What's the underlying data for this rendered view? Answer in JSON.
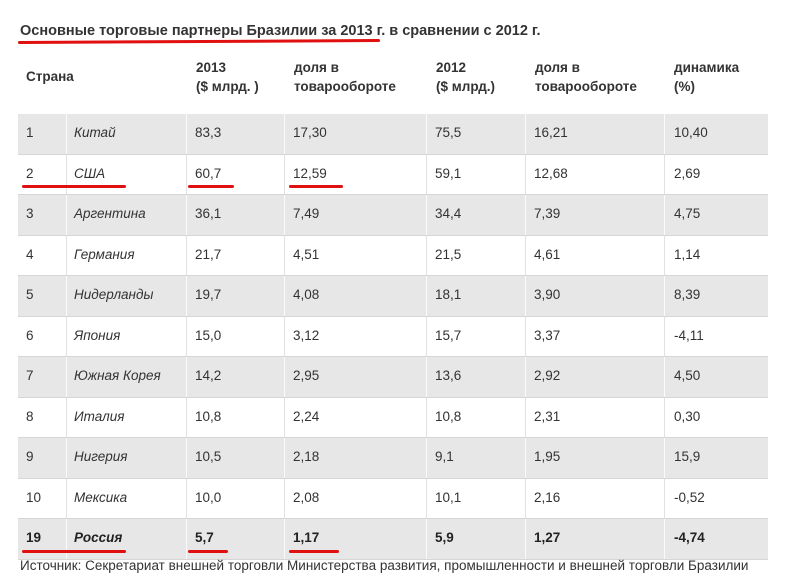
{
  "title": "Основные торговые партнеры Бразилии за 2013 г. в сравнении с 2012 г.",
  "headers": {
    "country": "Страна",
    "y2013_l1": "2013",
    "y2013_l2": "($ млрд. )",
    "share2013_l1": "доля в",
    "share2013_l2": "товарообороте",
    "y2012_l1": "2012",
    "y2012_l2": "($ млрд.)",
    "share2012_l1": "доля в",
    "share2012_l2": "товарообороте",
    "dyn_l1": "динамика",
    "dyn_l2": "(%)"
  },
  "source": "Источник: Секретариат внешней торговли Министерства развития, промышленности и внешней торговли Бразилии",
  "colors": {
    "highlight": "#e01010",
    "row_shade": "#e7e7e7"
  },
  "chart_data": {
    "type": "table",
    "title": "Основные торговые партнеры Бразилии за 2013 г. в сравнении с 2012 г.",
    "columns": [
      "Страна",
      "2013 ($ млрд. )",
      "доля в товарообороте",
      "2012 ($ млрд.)",
      "доля в товарообороте",
      "динамика (%)"
    ],
    "rows": [
      {
        "rank": "1",
        "country": "Китай",
        "v2013": "83,3",
        "s2013": "17,30",
        "v2012": "75,5",
        "s2012": "16,21",
        "dyn": "10,40"
      },
      {
        "rank": "2",
        "country": "США",
        "v2013": "60,7",
        "s2013": "12,59",
        "v2012": "59,1",
        "s2012": "12,68",
        "dyn": "2,69"
      },
      {
        "rank": "3",
        "country": "Аргентина",
        "v2013": "36,1",
        "s2013": "7,49",
        "v2012": "34,4",
        "s2012": "7,39",
        "dyn": "4,75"
      },
      {
        "rank": "4",
        "country": "Германия",
        "v2013": "21,7",
        "s2013": "4,51",
        "v2012": "21,5",
        "s2012": "4,61",
        "dyn": "1,14"
      },
      {
        "rank": "5",
        "country": "Нидерланды",
        "v2013": "19,7",
        "s2013": "4,08",
        "v2012": "18,1",
        "s2012": "3,90",
        "dyn": "8,39"
      },
      {
        "rank": "6",
        "country": "Япония",
        "v2013": "15,0",
        "s2013": "3,12",
        "v2012": "15,7",
        "s2012": "3,37",
        "dyn": "-4,11"
      },
      {
        "rank": "7",
        "country": "Южная Корея",
        "v2013": "14,2",
        "s2013": "2,95",
        "v2012": "13,6",
        "s2012": "2,92",
        "dyn": "4,50"
      },
      {
        "rank": "8",
        "country": "Италия",
        "v2013": "10,8",
        "s2013": "2,24",
        "v2012": "10,8",
        "s2012": "2,31",
        "dyn": "0,30"
      },
      {
        "rank": "9",
        "country": "Нигерия",
        "v2013": "10,5",
        "s2013": "2,18",
        "v2012": "9,1",
        "s2012": "1,95",
        "dyn": "15,9"
      },
      {
        "rank": "10",
        "country": "Мексика",
        "v2013": "10,0",
        "s2013": "2,08",
        "v2012": "10,1",
        "s2012": "2,16",
        "dyn": "-0,52"
      },
      {
        "rank": "19",
        "country": "Россия",
        "v2013": "5,7",
        "s2013": "1,17",
        "v2012": "5,9",
        "s2012": "1,27",
        "dyn": "-4,74"
      }
    ]
  }
}
